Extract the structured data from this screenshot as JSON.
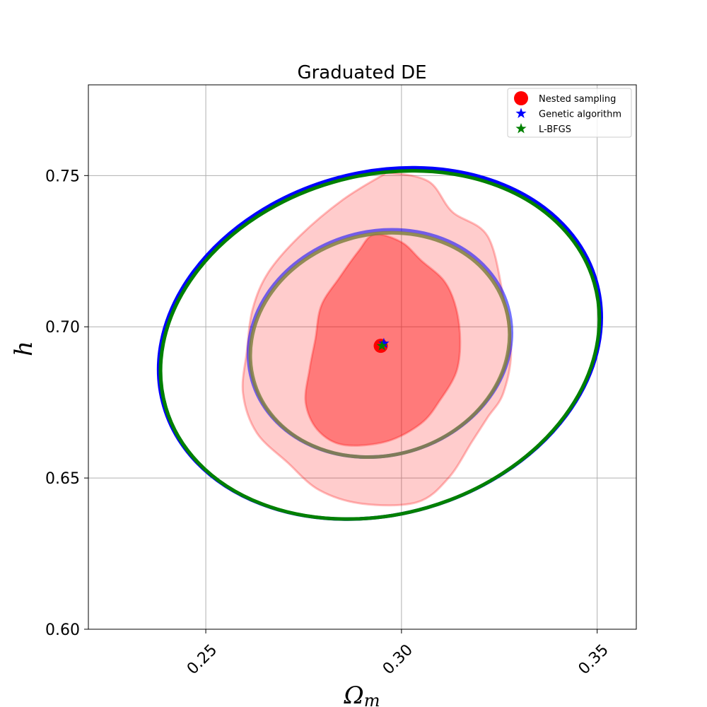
{
  "chart_data": {
    "type": "scatter",
    "title": "Graduated DE",
    "xlabel": "Ω",
    "xlabel_sub": "m",
    "ylabel": "h",
    "xlim": [
      0.22,
      0.36
    ],
    "ylim": [
      0.6,
      0.78
    ],
    "xticks": [
      {
        "value": 0.25,
        "label": "0.25"
      },
      {
        "value": 0.3,
        "label": "0.30"
      },
      {
        "value": 0.35,
        "label": "0.35"
      }
    ],
    "yticks": [
      {
        "value": 0.6,
        "label": "0.60"
      },
      {
        "value": 0.65,
        "label": "0.65"
      },
      {
        "value": 0.7,
        "label": "0.70"
      },
      {
        "value": 0.75,
        "label": "0.75"
      }
    ],
    "grid": true,
    "legend_position": "top-right",
    "legend": [
      {
        "label": "Nested sampling",
        "marker": "circle",
        "color": "#ff0000"
      },
      {
        "label": "Genetic algorithm",
        "marker": "star",
        "color": "#0000ff"
      },
      {
        "label": "L-BFGS",
        "marker": "star",
        "color": "#008000"
      }
    ],
    "series": [
      {
        "name": "Nested sampling",
        "color": "#ff0000",
        "points": [
          {
            "x": 0.2947,
            "y": 0.6937
          }
        ]
      },
      {
        "name": "Genetic algorithm",
        "color": "#0000ff",
        "points": [
          {
            "x": 0.2955,
            "y": 0.6945
          }
        ]
      },
      {
        "name": "L-BFGS",
        "color": "#008000",
        "points": [
          {
            "x": 0.295,
            "y": 0.6937
          }
        ]
      }
    ],
    "contours": {
      "nested_sampling_2sigma": {
        "color": "#ff0000",
        "fill_opacity": 0.2,
        "points": [
          [
            0.297,
            0.751
          ],
          [
            0.307,
            0.748
          ],
          [
            0.313,
            0.738
          ],
          [
            0.322,
            0.73
          ],
          [
            0.326,
            0.71
          ],
          [
            0.328,
            0.692
          ],
          [
            0.326,
            0.678
          ],
          [
            0.322,
            0.67
          ],
          [
            0.318,
            0.662
          ],
          [
            0.312,
            0.65
          ],
          [
            0.304,
            0.642
          ],
          [
            0.29,
            0.6415
          ],
          [
            0.279,
            0.646
          ],
          [
            0.271,
            0.655
          ],
          [
            0.263,
            0.665
          ],
          [
            0.2595,
            0.678
          ],
          [
            0.2605,
            0.692
          ],
          [
            0.262,
            0.706
          ],
          [
            0.266,
            0.718
          ],
          [
            0.274,
            0.73
          ],
          [
            0.285,
            0.742
          ],
          [
            0.295,
            0.75
          ]
        ]
      },
      "nested_sampling_1sigma": {
        "color": "#ff0000",
        "fill_opacity": 0.4,
        "points": [
          [
            0.293,
            0.7305
          ],
          [
            0.3,
            0.728
          ],
          [
            0.305,
            0.722
          ],
          [
            0.311,
            0.715
          ],
          [
            0.314,
            0.706
          ],
          [
            0.315,
            0.695
          ],
          [
            0.314,
            0.685
          ],
          [
            0.31,
            0.676
          ],
          [
            0.305,
            0.668
          ],
          [
            0.296,
            0.662
          ],
          [
            0.285,
            0.661
          ],
          [
            0.2785,
            0.666
          ],
          [
            0.2755,
            0.675
          ],
          [
            0.2765,
            0.686
          ],
          [
            0.278,
            0.696
          ],
          [
            0.2795,
            0.707
          ],
          [
            0.284,
            0.716
          ],
          [
            0.289,
            0.725
          ]
        ]
      },
      "genetic_algorithm_outer": {
        "color": "#0000ff",
        "cx": 0.2945,
        "cy": 0.6945,
        "rx": 0.0575,
        "ry": 0.0565,
        "tilt_slope": 0.29
      },
      "genetic_algorithm_inner": {
        "color": "#0000ff",
        "cx": 0.2945,
        "cy": 0.6945,
        "rx": 0.034,
        "ry": 0.037,
        "tilt_slope": 0.29
      },
      "lbfgs_outer": {
        "color": "#008000",
        "cx": 0.2945,
        "cy": 0.694,
        "rx": 0.057,
        "ry": 0.056,
        "tilt_slope": 0.29
      },
      "lbfgs_inner": {
        "color": "#808040",
        "cx": 0.2945,
        "cy": 0.694,
        "rx": 0.0335,
        "ry": 0.0365,
        "tilt_slope": 0.29
      }
    }
  }
}
